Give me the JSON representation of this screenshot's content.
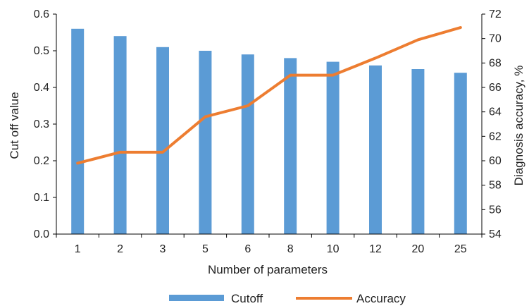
{
  "chart_data": {
    "type": "bar+line",
    "xlabel": "Number of parameters",
    "ylabel_left": "Cut off value",
    "ylabel_right": "Diagnosis accuracy, %",
    "categories": [
      "1",
      "2",
      "3",
      "5",
      "6",
      "8",
      "10",
      "12",
      "20",
      "25"
    ],
    "y_left": {
      "min": 0,
      "max": 0.6,
      "ticks": [
        "0.0",
        "0.1",
        "0.2",
        "0.3",
        "0.4",
        "0.5",
        "0.6"
      ]
    },
    "y_right": {
      "min": 54,
      "max": 72,
      "ticks": [
        "54",
        "56",
        "58",
        "60",
        "62",
        "64",
        "66",
        "68",
        "70",
        "72"
      ]
    },
    "series": [
      {
        "name": "Cutoff",
        "type": "bar",
        "axis": "left",
        "color": "#5b9bd5",
        "values": [
          0.56,
          0.54,
          0.51,
          0.5,
          0.49,
          0.48,
          0.47,
          0.46,
          0.45,
          0.44
        ]
      },
      {
        "name": "Accuracy",
        "type": "line",
        "axis": "right",
        "color": "#ed7d31",
        "values": [
          59.8,
          60.7,
          60.7,
          63.6,
          64.5,
          67.0,
          67.0,
          68.4,
          69.9,
          70.9
        ]
      }
    ],
    "grid": false,
    "legend": "bottom"
  }
}
